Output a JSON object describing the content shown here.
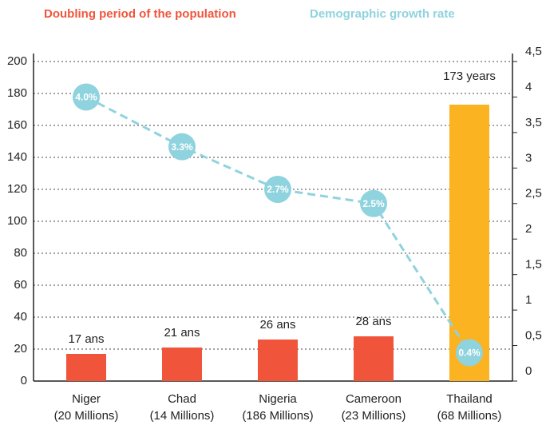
{
  "chart_data": {
    "type": "bar_line",
    "categories": [
      [
        "Niger",
        "(20 Millions)"
      ],
      [
        "Chad",
        "(14 Millions)"
      ],
      [
        "Nigeria",
        "(186 Millions)"
      ],
      [
        "Cameroon",
        "(23 Millions)"
      ],
      [
        "Thailand",
        "(68 Millions)"
      ]
    ],
    "series": [
      {
        "name": "Doubling period of the population",
        "color": "#f0553b",
        "bar_colors": [
          "#f0553b",
          "#f0553b",
          "#f0553b",
          "#f0553b",
          "#fbb321"
        ],
        "values": [
          17,
          21,
          26,
          28,
          173
        ],
        "value_labels": [
          "17 ans",
          "21 ans",
          "26 ans",
          "28 ans",
          "173 years"
        ]
      },
      {
        "name": "Demographic growth rate",
        "color": "#8fd3de",
        "axis": "y2",
        "values": [
          4.0,
          3.3,
          2.7,
          2.5,
          0.4
        ],
        "value_labels": [
          "4.0%",
          "3.3%",
          "2.7%",
          "2.5%",
          "0.4%"
        ]
      }
    ],
    "ylim": [
      0,
      200
    ],
    "yticks": [
      0,
      20,
      40,
      60,
      80,
      100,
      120,
      140,
      160,
      180,
      200
    ],
    "y2lim": [
      0,
      4.5
    ],
    "y2ticks": [
      0,
      {
        "value": 0.5,
        "label": "0,5"
      },
      1,
      {
        "value": 1.5,
        "label": "1,5"
      },
      2,
      {
        "value": 2.5,
        "label": "2,5"
      },
      3,
      {
        "value": 3.5,
        "label": "3,5"
      },
      4,
      {
        "value": 4.5,
        "label": "4,5"
      }
    ],
    "grid": true
  }
}
